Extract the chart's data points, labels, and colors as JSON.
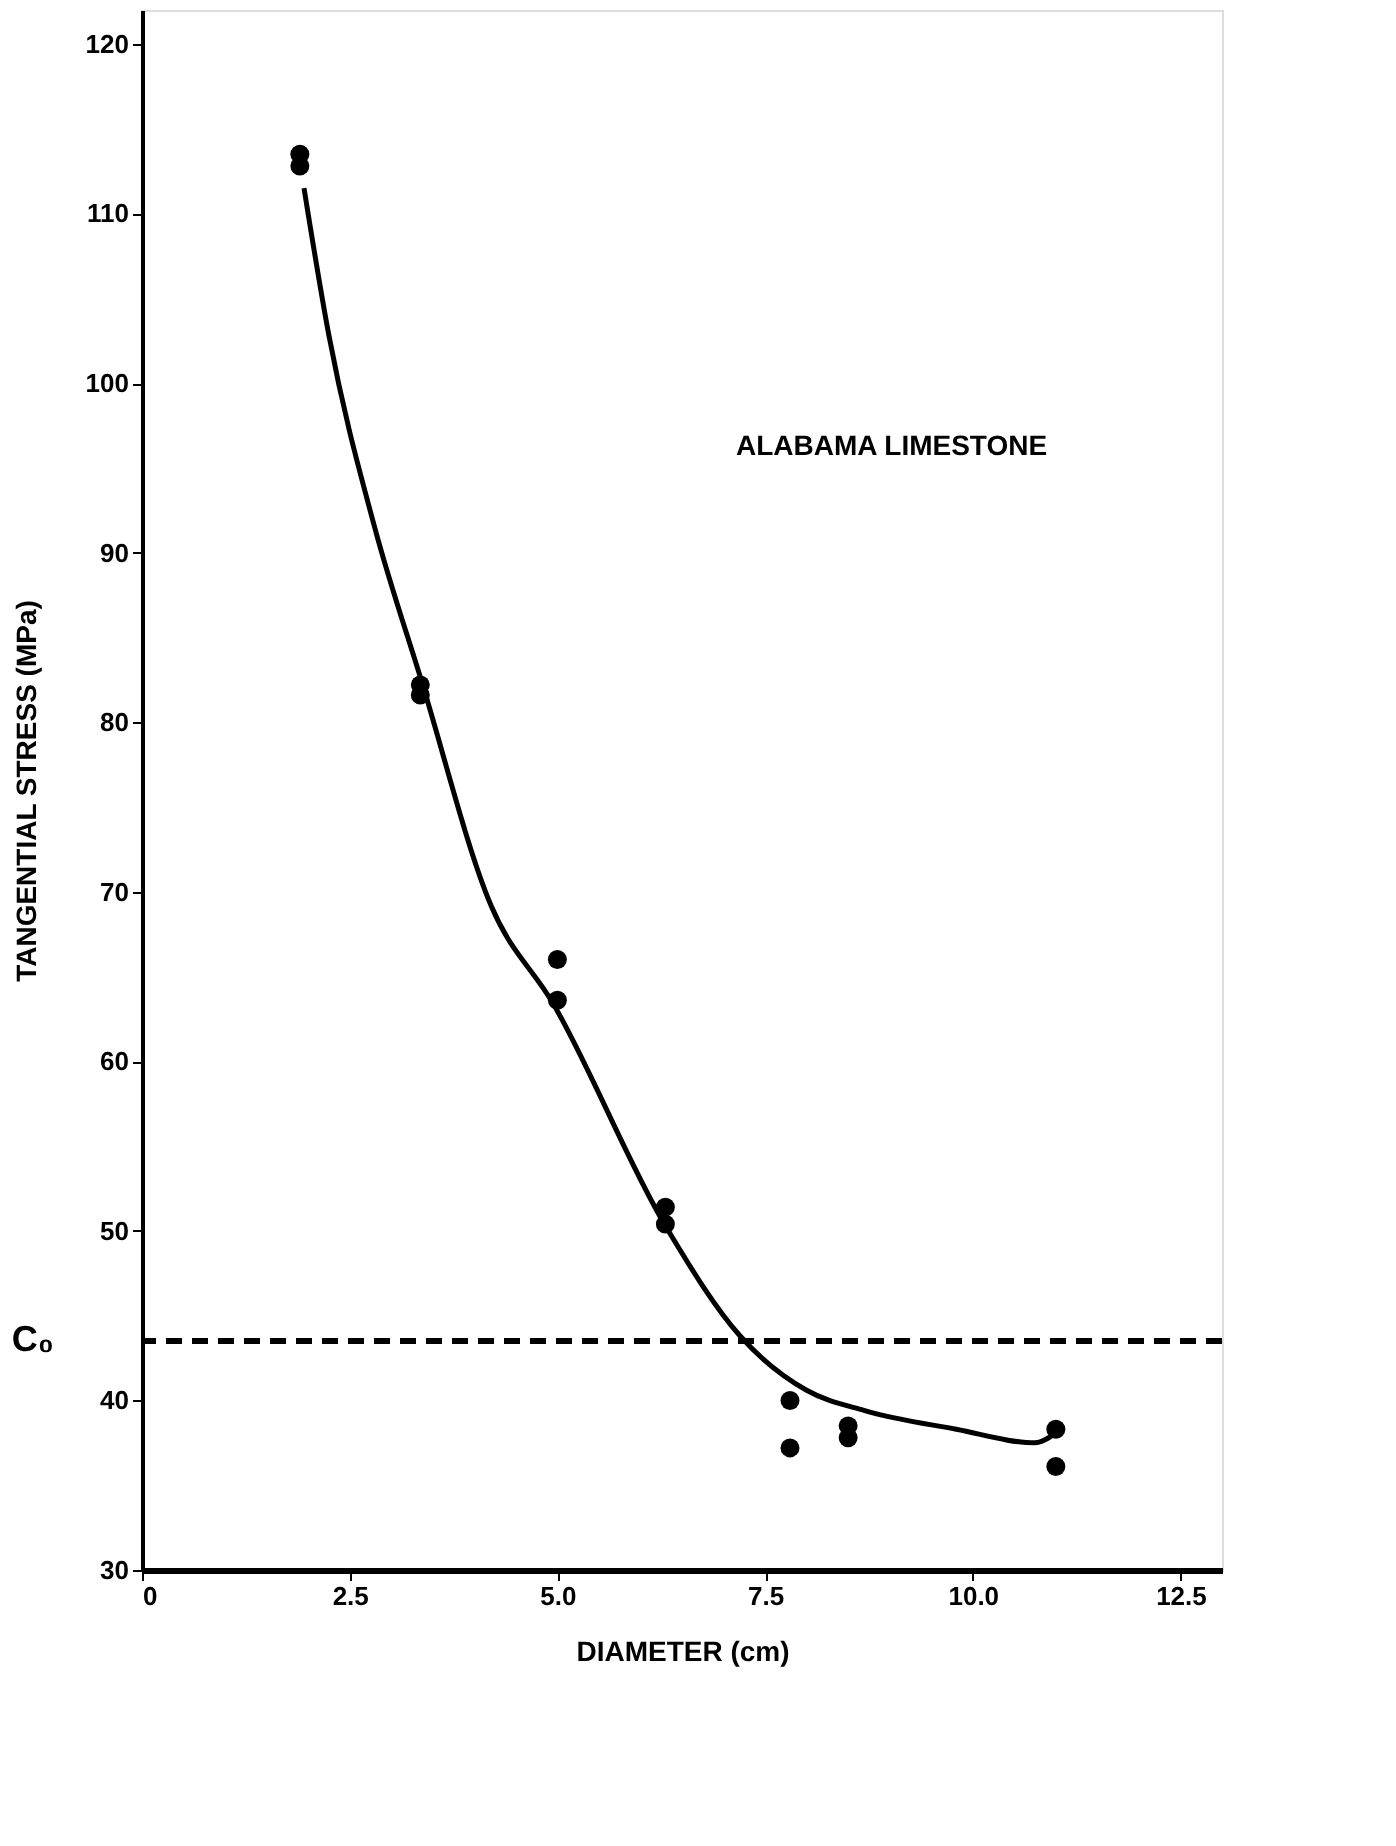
{
  "chart_data": {
    "type": "scatter",
    "xlabel": "DIAMETER (cm)",
    "ylabel": "TANGENTIAL STRESS (MPa)",
    "annotations": [
      "ALABAMA LIMESTONE"
    ],
    "xlim": [
      0,
      13
    ],
    "ylim": [
      30,
      122
    ],
    "xticks": [
      0,
      {
        "value": 2.5,
        "label": "2.5"
      },
      {
        "value": 5,
        "label": "5.0"
      },
      {
        "value": 7.5,
        "label": "7.5"
      },
      {
        "value": 10,
        "label": "10.0"
      },
      {
        "value": 12.5,
        "label": "12.5"
      }
    ],
    "yticks": [
      30,
      40,
      50,
      60,
      70,
      80,
      90,
      100,
      110,
      120
    ],
    "grid": false,
    "series": [
      {
        "color": "#000000",
        "marker": "circle",
        "x": [
          1.9,
          1.9,
          3.35,
          3.35,
          5.0,
          5.0,
          6.3,
          6.3,
          7.8,
          7.8,
          8.5,
          8.5,
          11.0,
          11.0
        ],
        "values": [
          113.5,
          112.8,
          82.2,
          81.6,
          66.0,
          63.6,
          51.4,
          50.4,
          40.0,
          37.2,
          38.5,
          37.8,
          38.3,
          36.1
        ]
      },
      {
        "type": "line",
        "color": "#000000",
        "line_style": "solid",
        "x": [
          1.95,
          2.25,
          2.8,
          3.36,
          4.2,
          4.95,
          6.3,
          7.2,
          8.0,
          8.7,
          9.8,
          10.75,
          11.0
        ],
        "values": [
          111.5,
          102.8,
          91.5,
          82.5,
          69.2,
          63.4,
          50.3,
          43.8,
          40.6,
          39.4,
          38.3,
          37.5,
          38.1
        ]
      }
    ],
    "ref_lines": [
      {
        "axis": "y",
        "value": 43.5,
        "label": "C₀",
        "color": "#000000",
        "line_style": "dashed"
      }
    ]
  }
}
